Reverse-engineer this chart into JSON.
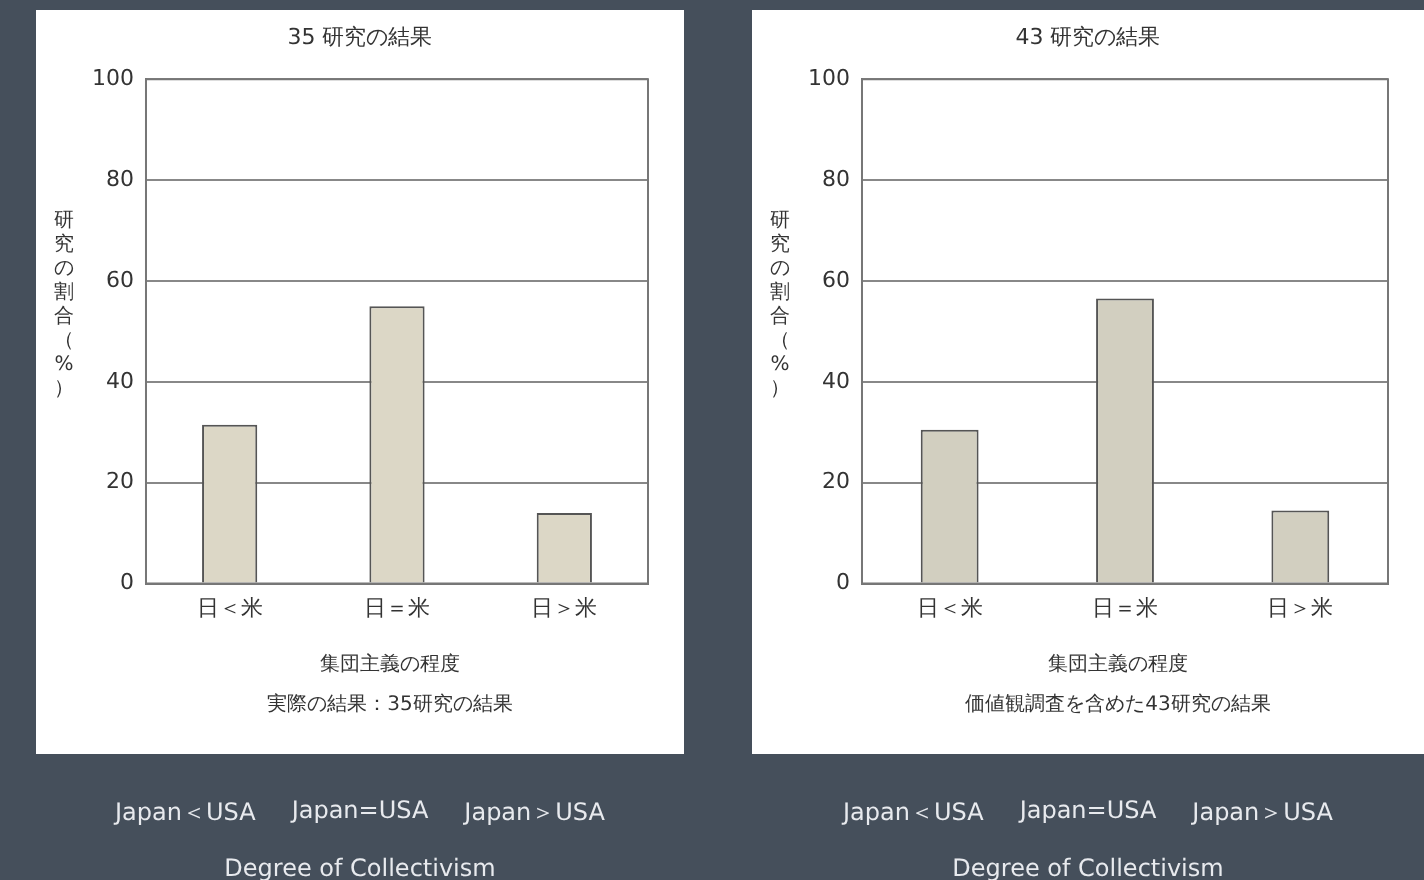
{
  "chart_data": [
    {
      "type": "bar",
      "title": "35 研究の結果",
      "xlabel": "集団主義の程度",
      "ylabel": "研究の割合（%）",
      "categories": [
        "日＜米",
        "日＝米",
        "日＞米"
      ],
      "values": [
        31.5,
        55,
        14
      ],
      "color": "#dcd7c6",
      "ylim": [
        0,
        100
      ],
      "yticks": [
        0,
        20,
        40,
        60,
        80,
        100
      ],
      "grid": "y",
      "annotations": [
        "実際の結果：35研究の結果",
        "Japan＜USA",
        "Japan=USA",
        "Japan＞USA",
        "Degree of Collectivism"
      ]
    },
    {
      "type": "bar",
      "title": "43 研究の結果",
      "xlabel": "集団主義の程度",
      "ylabel": "研究の割合（%）",
      "categories": [
        "日＜米",
        "日＝米",
        "日＞米"
      ],
      "values": [
        30.5,
        56.5,
        14.5
      ],
      "color": "#d2cfc0",
      "ylim": [
        0,
        100
      ],
      "yticks": [
        0,
        20,
        40,
        60,
        80,
        100
      ],
      "grid": "y",
      "annotations": [
        "価値観調査を含めた43研究の結果",
        "Japan＜USA",
        "Japan=USA",
        "Japan＞USA",
        "Degree of Collectivism"
      ]
    }
  ]
}
